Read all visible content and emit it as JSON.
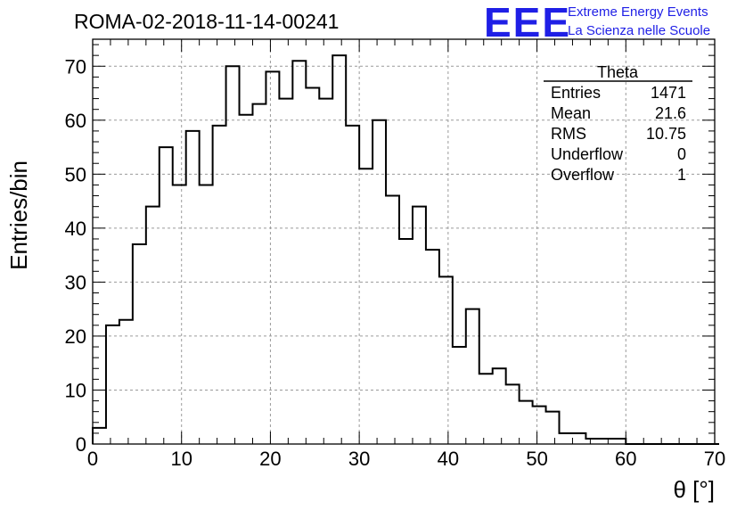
{
  "chart_data": {
    "type": "histogram",
    "title": "ROMA-02-2018-11-14-00241",
    "xlabel": "θ [°]",
    "ylabel": "Entries/bin",
    "xlim": [
      0,
      70
    ],
    "ylim": [
      0,
      75
    ],
    "xticks": [
      0,
      10,
      20,
      30,
      40,
      50,
      60,
      70
    ],
    "yticks": [
      0,
      10,
      20,
      30,
      40,
      50,
      60,
      70
    ],
    "grid": true,
    "bin_width": 1.5,
    "bin_start": 0,
    "values": [
      3,
      22,
      23,
      37,
      44,
      55,
      48,
      58,
      48,
      59,
      70,
      61,
      63,
      69,
      64,
      71,
      66,
      64,
      72,
      59,
      51,
      60,
      46,
      38,
      44,
      36,
      31,
      18,
      25,
      13,
      14,
      11,
      8,
      7,
      6,
      2,
      2,
      1,
      1,
      1,
      0,
      0,
      0,
      0,
      0,
      0,
      0
    ],
    "stats": {
      "name": "Theta",
      "rows": [
        {
          "label": "Entries",
          "value": "1471"
        },
        {
          "label": "Mean",
          "value": "21.6"
        },
        {
          "label": "RMS",
          "value": "10.75"
        },
        {
          "label": "Underflow",
          "value": "0"
        },
        {
          "label": "Overflow",
          "value": "1"
        }
      ]
    }
  },
  "logo": {
    "big": "EEE",
    "line1": "Extreme Energy Events",
    "line2": "La Scienza nelle Scuole",
    "color": "#1f1fe6"
  }
}
